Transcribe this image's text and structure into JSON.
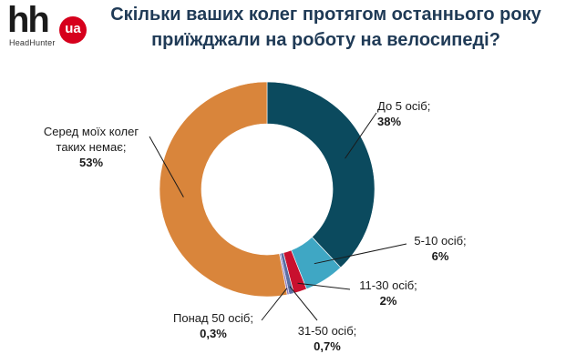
{
  "logo": {
    "main": "hh",
    "badge": "ua",
    "sub": "HeadHunter"
  },
  "title": {
    "line1": "Скільки ваших колег протягом останнього року",
    "line2": "приїжджали на роботу на велосипеді?"
  },
  "chart_data": {
    "type": "pie",
    "donut": true,
    "title": "Скільки ваших колег протягом останнього року приїжджали на роботу на велосипеді?",
    "slices": [
      {
        "label": "До 5 осіб;",
        "value": 38,
        "value_label": "38%",
        "color": "#0b4a5e"
      },
      {
        "label": "5-10 осіб;",
        "value": 6,
        "value_label": "6%",
        "color": "#3fa7c4"
      },
      {
        "label": "11-30 осіб;",
        "value": 2,
        "value_label": "2%",
        "color": "#c8102e"
      },
      {
        "label": "31-50 осіб;",
        "value": 0.7,
        "value_label": "0,7%",
        "color": "#5b6fa3"
      },
      {
        "label": "Понад 50 осіб;",
        "value": 0.3,
        "value_label": "0,3%",
        "color": "#8e7cc3"
      },
      {
        "label": "Серед моїх колег таких немає;",
        "label_lines": [
          "Серед моїх колег",
          "таких немає;"
        ],
        "value": 53,
        "value_label": "53%",
        "color": "#d9853b"
      }
    ]
  }
}
